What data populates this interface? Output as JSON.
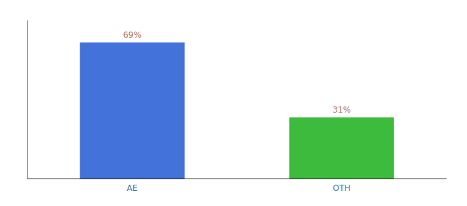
{
  "chart_data": {
    "type": "bar",
    "categories": [
      "AE",
      "OTH"
    ],
    "values": [
      69,
      31
    ],
    "value_labels": [
      "69%",
      "31%"
    ],
    "colors": [
      "#4472db",
      "#3dbb3d"
    ],
    "ylim": [
      0,
      80
    ],
    "grid": false,
    "data_labels": true,
    "tick_labels": "x"
  }
}
